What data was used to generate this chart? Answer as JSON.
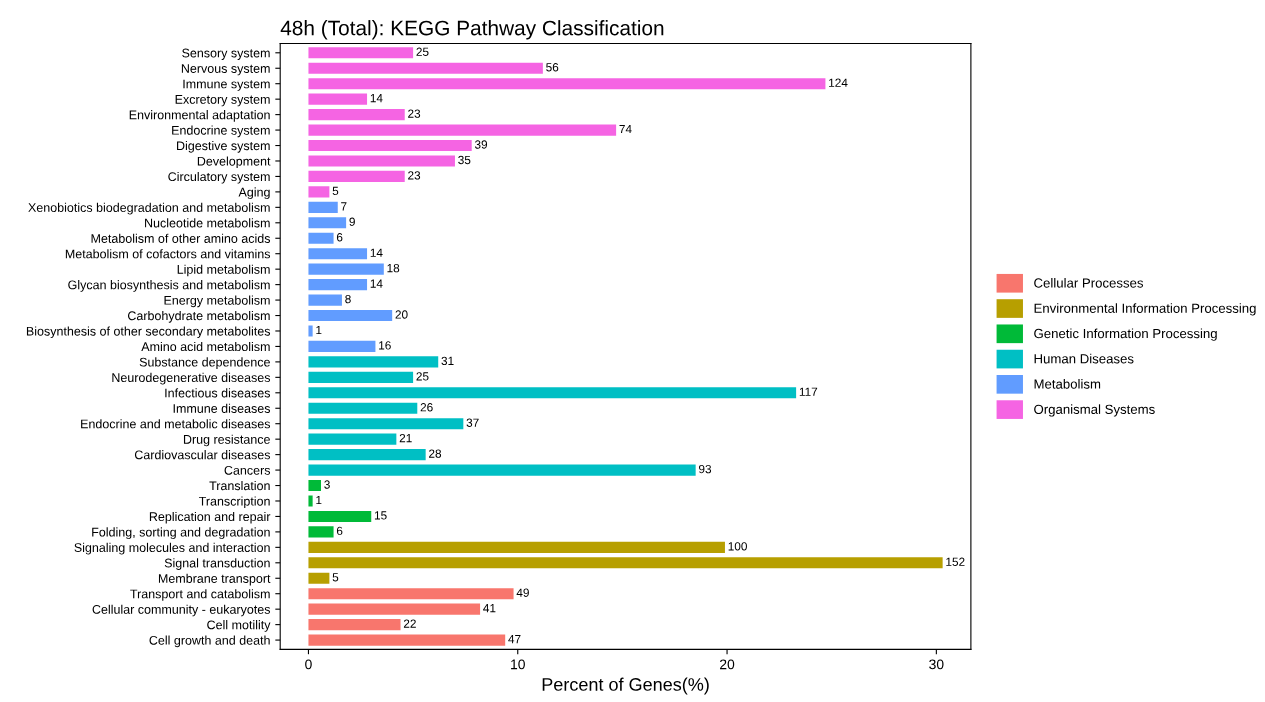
{
  "chart_data": {
    "type": "bar",
    "orientation": "horizontal",
    "title": "48h (Total): KEGG Pathway Classification",
    "xlabel": "Percent of Genes(%)",
    "categories": [
      "Sensory system",
      "Nervous system",
      "Immune system",
      "Excretory system",
      "Environmental adaptation",
      "Endocrine system",
      "Digestive system",
      "Development",
      "Circulatory system",
      "Aging",
      "Xenobiotics biodegradation and metabolism",
      "Nucleotide metabolism",
      "Metabolism of other amino acids",
      "Metabolism of cofactors and vitamins",
      "Lipid metabolism",
      "Glycan biosynthesis and metabolism",
      "Energy metabolism",
      "Carbohydrate metabolism",
      "Biosynthesis of other secondary metabolites",
      "Amino acid metabolism",
      "Substance dependence",
      "Neurodegenerative diseases",
      "Infectious diseases",
      "Immune diseases",
      "Endocrine and metabolic diseases",
      "Drug resistance",
      "Cardiovascular diseases",
      "Cancers",
      "Translation",
      "Transcription",
      "Replication and repair",
      "Folding, sorting and degradation",
      "Signaling molecules and interaction",
      "Signal transduction",
      "Membrane transport",
      "Transport and catabolism",
      "Cellular community - eukaryotes",
      "Cell motility",
      "Cell growth and death"
    ],
    "series": [
      {
        "name": "Cellular Processes",
        "color": "#f8766d",
        "values": [
          null,
          null,
          null,
          null,
          null,
          null,
          null,
          null,
          null,
          null,
          null,
          null,
          null,
          null,
          null,
          null,
          null,
          null,
          null,
          null,
          null,
          null,
          null,
          null,
          null,
          null,
          null,
          null,
          null,
          null,
          null,
          null,
          null,
          null,
          null,
          9.8,
          8.2,
          4.4,
          9.4
        ]
      },
      {
        "name": "Environmental Information Processing",
        "color": "#b79f00",
        "values": [
          null,
          null,
          null,
          null,
          null,
          null,
          null,
          null,
          null,
          null,
          null,
          null,
          null,
          null,
          null,
          null,
          null,
          null,
          null,
          null,
          null,
          null,
          null,
          null,
          null,
          null,
          null,
          null,
          null,
          null,
          null,
          null,
          19.9,
          30.3,
          1.0,
          null,
          null,
          null,
          null
        ]
      },
      {
        "name": "Genetic Information Processing",
        "color": "#00ba38",
        "values": [
          null,
          null,
          null,
          null,
          null,
          null,
          null,
          null,
          null,
          null,
          null,
          null,
          null,
          null,
          null,
          null,
          null,
          null,
          null,
          null,
          null,
          null,
          null,
          null,
          null,
          null,
          null,
          null,
          0.6,
          0.2,
          3.0,
          1.2,
          null,
          null,
          null,
          null,
          null,
          null,
          null
        ]
      },
      {
        "name": "Human Diseases",
        "color": "#00bfc4",
        "values": [
          null,
          null,
          null,
          null,
          null,
          null,
          null,
          null,
          null,
          null,
          null,
          null,
          null,
          null,
          null,
          null,
          null,
          null,
          null,
          null,
          6.2,
          5.0,
          23.3,
          5.2,
          7.4,
          4.2,
          5.6,
          18.5,
          null,
          null,
          null,
          null,
          null,
          null,
          null,
          null,
          null,
          null,
          null
        ]
      },
      {
        "name": "Metabolism",
        "color": "#619cff",
        "values": [
          null,
          null,
          null,
          null,
          null,
          null,
          null,
          null,
          null,
          null,
          1.4,
          1.8,
          1.2,
          2.8,
          3.6,
          2.8,
          1.6,
          4.0,
          0.2,
          3.2,
          null,
          null,
          null,
          null,
          null,
          null,
          null,
          null,
          null,
          null,
          null,
          null,
          null,
          null,
          null,
          null,
          null,
          null,
          null
        ]
      },
      {
        "name": "Organismal Systems",
        "color": "#f564e3",
        "values": [
          5.0,
          11.2,
          24.7,
          2.8,
          4.6,
          14.7,
          7.8,
          7.0,
          4.6,
          1.0,
          null,
          null,
          null,
          null,
          null,
          null,
          null,
          null,
          null,
          null,
          null,
          null,
          null,
          null,
          null,
          null,
          null,
          null,
          null,
          null,
          null,
          null,
          null,
          null,
          null,
          null,
          null,
          null,
          null
        ]
      }
    ],
    "annotations": [
      {
        "text": "25",
        "x": 5.0,
        "y": "Sensory system"
      },
      {
        "text": "56",
        "x": 11.2,
        "y": "Nervous system"
      },
      {
        "text": "124",
        "x": 24.7,
        "y": "Immune system"
      },
      {
        "text": "14",
        "x": 2.8,
        "y": "Excretory system"
      },
      {
        "text": "23",
        "x": 4.6,
        "y": "Environmental adaptation"
      },
      {
        "text": "74",
        "x": 14.7,
        "y": "Endocrine system"
      },
      {
        "text": "39",
        "x": 7.8,
        "y": "Digestive system"
      },
      {
        "text": "35",
        "x": 7.0,
        "y": "Development"
      },
      {
        "text": "23",
        "x": 4.6,
        "y": "Circulatory system"
      },
      {
        "text": "5",
        "x": 1.0,
        "y": "Aging"
      },
      {
        "text": "7",
        "x": 1.4,
        "y": "Xenobiotics biodegradation and metabolism"
      },
      {
        "text": "9",
        "x": 1.8,
        "y": "Nucleotide metabolism"
      },
      {
        "text": "6",
        "x": 1.2,
        "y": "Metabolism of other amino acids"
      },
      {
        "text": "14",
        "x": 2.8,
        "y": "Metabolism of cofactors and vitamins"
      },
      {
        "text": "18",
        "x": 3.6,
        "y": "Lipid metabolism"
      },
      {
        "text": "14",
        "x": 2.8,
        "y": "Glycan biosynthesis and metabolism"
      },
      {
        "text": "8",
        "x": 1.6,
        "y": "Energy metabolism"
      },
      {
        "text": "20",
        "x": 4.0,
        "y": "Carbohydrate metabolism"
      },
      {
        "text": "1",
        "x": 0.2,
        "y": "Biosynthesis of other secondary metabolites"
      },
      {
        "text": "16",
        "x": 3.2,
        "y": "Amino acid metabolism"
      },
      {
        "text": "31",
        "x": 6.2,
        "y": "Substance dependence"
      },
      {
        "text": "25",
        "x": 5.0,
        "y": "Neurodegenerative diseases"
      },
      {
        "text": "117",
        "x": 23.3,
        "y": "Infectious diseases"
      },
      {
        "text": "26",
        "x": 5.2,
        "y": "Immune diseases"
      },
      {
        "text": "37",
        "x": 7.4,
        "y": "Endocrine and metabolic diseases"
      },
      {
        "text": "21",
        "x": 4.2,
        "y": "Drug resistance"
      },
      {
        "text": "28",
        "x": 5.6,
        "y": "Cardiovascular diseases"
      },
      {
        "text": "93",
        "x": 18.5,
        "y": "Cancers"
      },
      {
        "text": "3",
        "x": 0.6,
        "y": "Translation"
      },
      {
        "text": "1",
        "x": 0.2,
        "y": "Transcription"
      },
      {
        "text": "15",
        "x": 3.0,
        "y": "Replication and repair"
      },
      {
        "text": "6",
        "x": 1.2,
        "y": "Folding, sorting and degradation"
      },
      {
        "text": "100",
        "x": 19.9,
        "y": "Signaling molecules and interaction"
      },
      {
        "text": "152",
        "x": 30.3,
        "y": "Signal transduction"
      },
      {
        "text": "5",
        "x": 1.0,
        "y": "Membrane transport"
      },
      {
        "text": "49",
        "x": 9.8,
        "y": "Transport and catabolism"
      },
      {
        "text": "41",
        "x": 8.2,
        "y": "Cellular community - eukaryotes"
      },
      {
        "text": "22",
        "x": 4.4,
        "y": "Cell motility"
      },
      {
        "text": "47",
        "x": 9.4,
        "y": "Cell growth and death"
      }
    ],
    "xlim": [
      -1.35,
      31.65
    ],
    "xticks": [
      0,
      10,
      20,
      30
    ],
    "grid": false,
    "legend": "right"
  }
}
